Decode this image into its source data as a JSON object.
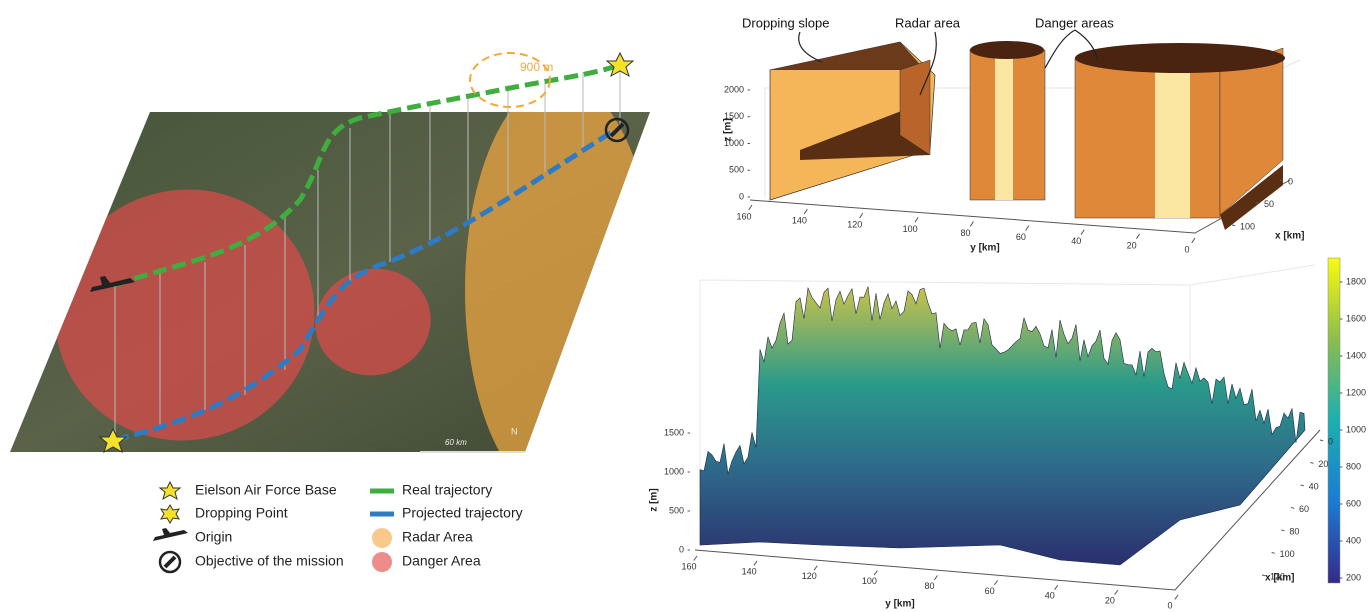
{
  "map": {
    "annotation": "900 m",
    "scale": "60 km",
    "north": "N"
  },
  "legend": [
    "Eielson Air Force Base",
    "Dropping Point",
    "Origin",
    "Objective of the mission",
    "Real trajectory",
    "Projected trajectory",
    "Radar Area",
    "Danger Area"
  ],
  "plot_top": {
    "annotations": [
      "Dropping slope",
      "Radar area",
      "Danger areas"
    ],
    "zlabel": "z [m]",
    "ylabel": "y [km]",
    "xlabel": "x [km]",
    "zticks": [
      0,
      500,
      1000,
      1500,
      2000
    ],
    "yticks": [
      160,
      140,
      120,
      100,
      80,
      60,
      40,
      20,
      0
    ],
    "xticks": [
      0,
      50,
      100
    ]
  },
  "plot_bottom": {
    "zlabel": "z [m]",
    "ylabel": "y [km]",
    "xlabel": "x [km]",
    "zticks": [
      0,
      500,
      1000,
      1500
    ],
    "yticks": [
      160,
      140,
      120,
      100,
      80,
      60,
      40,
      20,
      0
    ],
    "xticks": [
      0,
      20,
      40,
      60,
      80,
      100,
      120
    ],
    "colorbar_ticks": [
      200,
      400,
      600,
      800,
      1000,
      1200,
      1400,
      1600,
      1800
    ]
  }
}
